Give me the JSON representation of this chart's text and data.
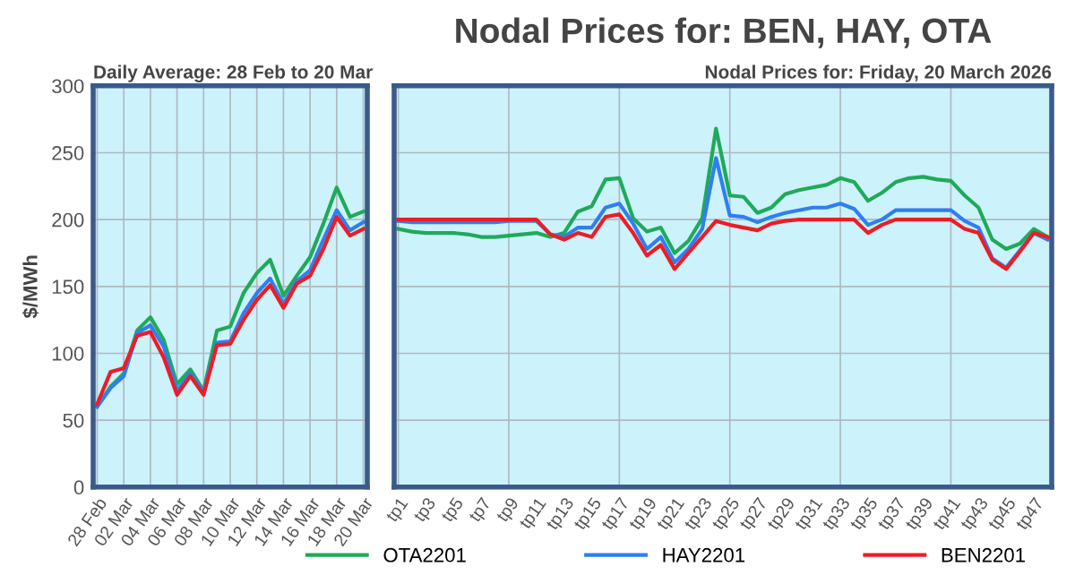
{
  "chart_data": [
    {
      "type": "line",
      "subtitle": "Daily Average: 28 Feb to 20 Mar",
      "ylabel": "$/MWh",
      "categories": [
        "28 Feb",
        null,
        "02 Mar",
        null,
        "04 Mar",
        null,
        "06 Mar",
        null,
        "08 Mar",
        null,
        "10 Mar",
        null,
        "12 Mar",
        null,
        "14 Mar",
        null,
        "16 Mar",
        null,
        "18 Mar",
        null,
        "20 Mar"
      ],
      "ylim": [
        0,
        300
      ],
      "yticks": [
        0,
        50,
        100,
        150,
        200,
        250,
        300
      ],
      "grid": true,
      "legend": "bottom",
      "series": [
        {
          "name": "OTA2201",
          "color": "#1faa59",
          "values": [
            60,
            75,
            85,
            117,
            127,
            110,
            77,
            88,
            72,
            117,
            120,
            145,
            160,
            170,
            143,
            158,
            172,
            197,
            224,
            202,
            206
          ]
        },
        {
          "name": "HAY2201",
          "color": "#2f7ff0",
          "values": [
            60,
            74,
            83,
            115,
            121,
            105,
            72,
            85,
            71,
            108,
            109,
            130,
            145,
            156,
            137,
            154,
            162,
            185,
            207,
            192,
            198
          ]
        },
        {
          "name": "BEN2201",
          "color": "#ee1c25",
          "values": [
            62,
            86,
            89,
            113,
            116,
            97,
            69,
            83,
            69,
            106,
            107,
            125,
            140,
            151,
            134,
            152,
            158,
            178,
            202,
            188,
            193
          ]
        }
      ]
    },
    {
      "type": "line",
      "title": "Nodal Prices for: BEN, HAY, OTA",
      "subtitle": "Nodal Prices for: Friday, 20 March 2026",
      "categories": [
        "tp1",
        null,
        "tp3",
        null,
        "tp5",
        null,
        "tp7",
        null,
        "tp9",
        null,
        "tp11",
        null,
        "tp13",
        null,
        "tp15",
        null,
        "tp17",
        null,
        "tp19",
        null,
        "tp21",
        null,
        "tp23",
        null,
        "tp25",
        null,
        "tp27",
        null,
        "tp29",
        null,
        "tp31",
        null,
        "tp33",
        null,
        "tp35",
        null,
        "tp37",
        null,
        "tp39",
        null,
        "tp41",
        null,
        "tp43",
        null,
        "tp45",
        null,
        "tp47",
        null
      ],
      "ylim": [
        0,
        300
      ],
      "yticks": [
        0,
        50,
        100,
        150,
        200,
        250,
        300
      ],
      "grid": true,
      "tick_labels": "x",
      "series": [
        {
          "color": "#1faa59",
          "values": [
            193,
            191,
            190,
            190,
            190,
            189,
            187,
            187,
            188,
            189,
            190,
            187,
            190,
            206,
            210,
            230,
            231,
            201,
            191,
            194,
            175,
            184,
            201,
            268,
            218,
            217,
            205,
            209,
            219,
            222,
            224,
            226,
            231,
            228,
            214,
            220,
            228,
            231,
            232,
            230,
            229,
            218,
            209,
            185,
            178,
            182,
            193,
            187
          ]
        },
        {
          "color": "#2f7ff0",
          "values": [
            199,
            198,
            198,
            198,
            198,
            198,
            198,
            198,
            199,
            199,
            199,
            189,
            187,
            194,
            194,
            209,
            212,
            197,
            178,
            187,
            168,
            178,
            193,
            246,
            203,
            202,
            198,
            202,
            205,
            207,
            209,
            209,
            212,
            208,
            196,
            200,
            207,
            207,
            207,
            207,
            207,
            199,
            194,
            171,
            164,
            177,
            190,
            185
          ]
        },
        {
          "color": "#ee1c25",
          "values": [
            200,
            200,
            200,
            200,
            200,
            200,
            200,
            200,
            200,
            200,
            200,
            189,
            185,
            190,
            187,
            202,
            204,
            190,
            173,
            181,
            163,
            175,
            187,
            199,
            196,
            194,
            192,
            197,
            199,
            200,
            200,
            200,
            200,
            200,
            190,
            196,
            200,
            200,
            200,
            200,
            200,
            193,
            190,
            170,
            163,
            176,
            190,
            187
          ]
        }
      ]
    }
  ]
}
